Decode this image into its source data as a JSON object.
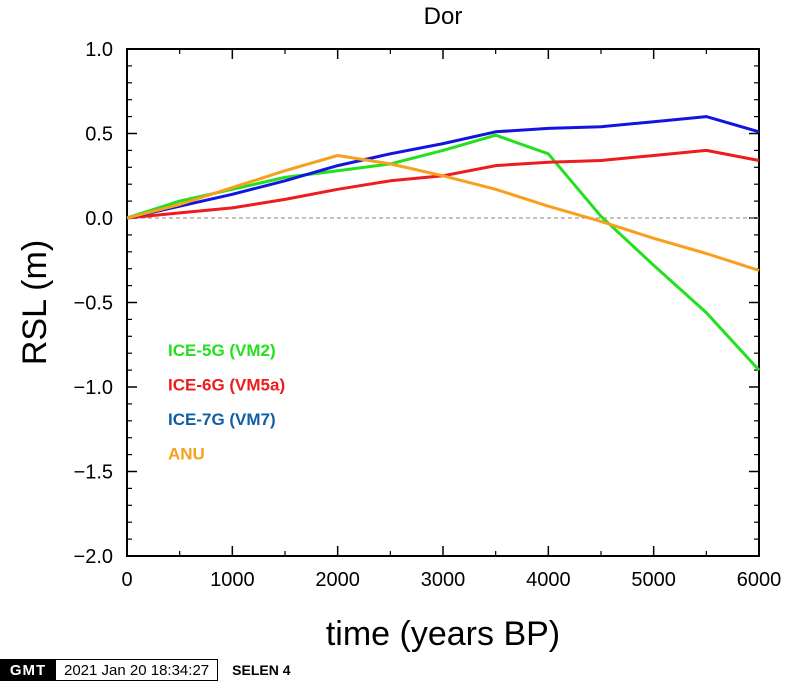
{
  "chart_data": {
    "type": "line",
    "title": "Dor",
    "xlabel": "time (years BP)",
    "ylabel": "RSL (m)",
    "xlim": [
      0,
      6000
    ],
    "ylim": [
      -2.0,
      1.0
    ],
    "xticks": [
      0,
      1000,
      2000,
      3000,
      4000,
      5000,
      6000
    ],
    "yticks": [
      -2.0,
      -1.5,
      -1.0,
      -0.5,
      0.0,
      0.5,
      1.0
    ],
    "xtick_labels": [
      "0",
      "1000",
      "2000",
      "3000",
      "4000",
      "5000",
      "6000"
    ],
    "ytick_labels": [
      "−2.0",
      "−1.5",
      "−1.0",
      "−0.5",
      "0.0",
      "0.5",
      "1.0"
    ],
    "reference_line": {
      "y": 0.0,
      "style": "dashed",
      "color": "#888888"
    },
    "grid": false,
    "legend_position": "lower-left",
    "series": [
      {
        "name": "ICE-5G (VM2)",
        "color": "#22e01c",
        "x": [
          0,
          500,
          1000,
          1500,
          2000,
          2500,
          3000,
          3500,
          4000,
          4500,
          5000,
          5500,
          6000
        ],
        "y": [
          0.0,
          0.1,
          0.17,
          0.24,
          0.28,
          0.32,
          0.4,
          0.49,
          0.38,
          0.01,
          -0.28,
          -0.56,
          -0.9
        ]
      },
      {
        "name": "ICE-6G (VM5a)",
        "color": "#ee1c1c",
        "x": [
          0,
          500,
          1000,
          1500,
          2000,
          2500,
          3000,
          3500,
          4000,
          4500,
          5000,
          5500,
          6000
        ],
        "y": [
          0.0,
          0.03,
          0.06,
          0.11,
          0.17,
          0.22,
          0.25,
          0.31,
          0.33,
          0.34,
          0.37,
          0.4,
          0.34
        ]
      },
      {
        "name": "ICE-7G (VM7)",
        "color": "#1414e0",
        "x": [
          0,
          500,
          1000,
          1500,
          2000,
          2500,
          3000,
          3500,
          4000,
          4500,
          5000,
          5500,
          6000
        ],
        "y": [
          0.0,
          0.07,
          0.14,
          0.22,
          0.31,
          0.38,
          0.44,
          0.51,
          0.53,
          0.54,
          0.57,
          0.6,
          0.51
        ]
      },
      {
        "name": "ANU",
        "color": "#f7a01e",
        "x": [
          0,
          500,
          1000,
          1500,
          2000,
          2500,
          3000,
          3500,
          4000,
          4500,
          5000,
          5500,
          6000
        ],
        "y": [
          0.0,
          0.08,
          0.18,
          0.28,
          0.37,
          0.32,
          0.25,
          0.17,
          0.07,
          -0.02,
          -0.12,
          -0.21,
          -0.31
        ]
      }
    ],
    "legend_label_colors": [
      "#22e01c",
      "#ee1c1c",
      "#0f5fa6",
      "#f7a01e"
    ]
  },
  "footer": {
    "logo_text": "GMT",
    "timestamp": "2021 Jan 20 18:34:27",
    "label": "SELEN 4"
  }
}
